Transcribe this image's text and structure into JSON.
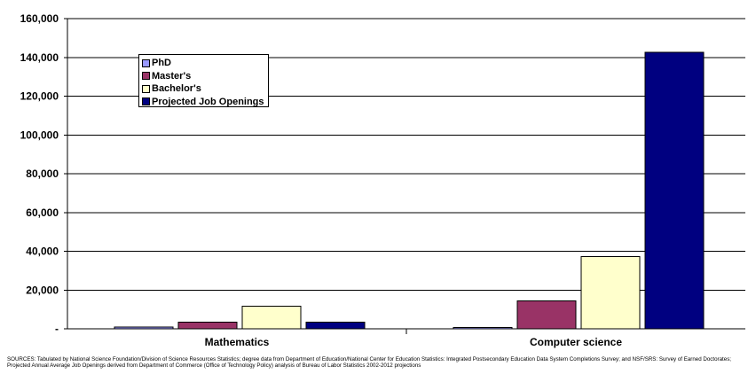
{
  "chart_data": {
    "type": "bar",
    "categories": [
      "Mathematics",
      "Computer science"
    ],
    "series": [
      {
        "name": "PhD",
        "values": [
          1000,
          800
        ],
        "color": "#9999ff"
      },
      {
        "name": "Master's",
        "values": [
          3400,
          14500
        ],
        "color": "#993366"
      },
      {
        "name": "Bachelor's",
        "values": [
          11700,
          37300
        ],
        "color": "#ffffcc"
      },
      {
        "name": "Projected Job Openings",
        "values": [
          3500,
          142700
        ],
        "color": "#000080"
      }
    ],
    "ylim": [
      0,
      160000
    ],
    "yticks": [
      0,
      20000,
      40000,
      60000,
      80000,
      100000,
      120000,
      140000,
      160000
    ],
    "ytick_labels": [
      "-",
      "20,000",
      "40,000",
      "60,000",
      "80,000",
      "100,000",
      "120,000",
      "140,000",
      "160,000"
    ],
    "grid": true,
    "legend_position": "top-left"
  },
  "sources": "SOURCES:    Tabulated by National Science Foundation/Division of Science Resources Statistics; degree data from Department of Education/National Center for Education Statistics:  Integrated Postsecondary Education Data System Completions Survey; and NSF/SRS: Survey of Earned Doctorates; Projected Annual Average Job Openings derived from Department of Commerce (Office of Technology Policy) analysis of Bureau of Labor Statistics 2002-2012 projections"
}
